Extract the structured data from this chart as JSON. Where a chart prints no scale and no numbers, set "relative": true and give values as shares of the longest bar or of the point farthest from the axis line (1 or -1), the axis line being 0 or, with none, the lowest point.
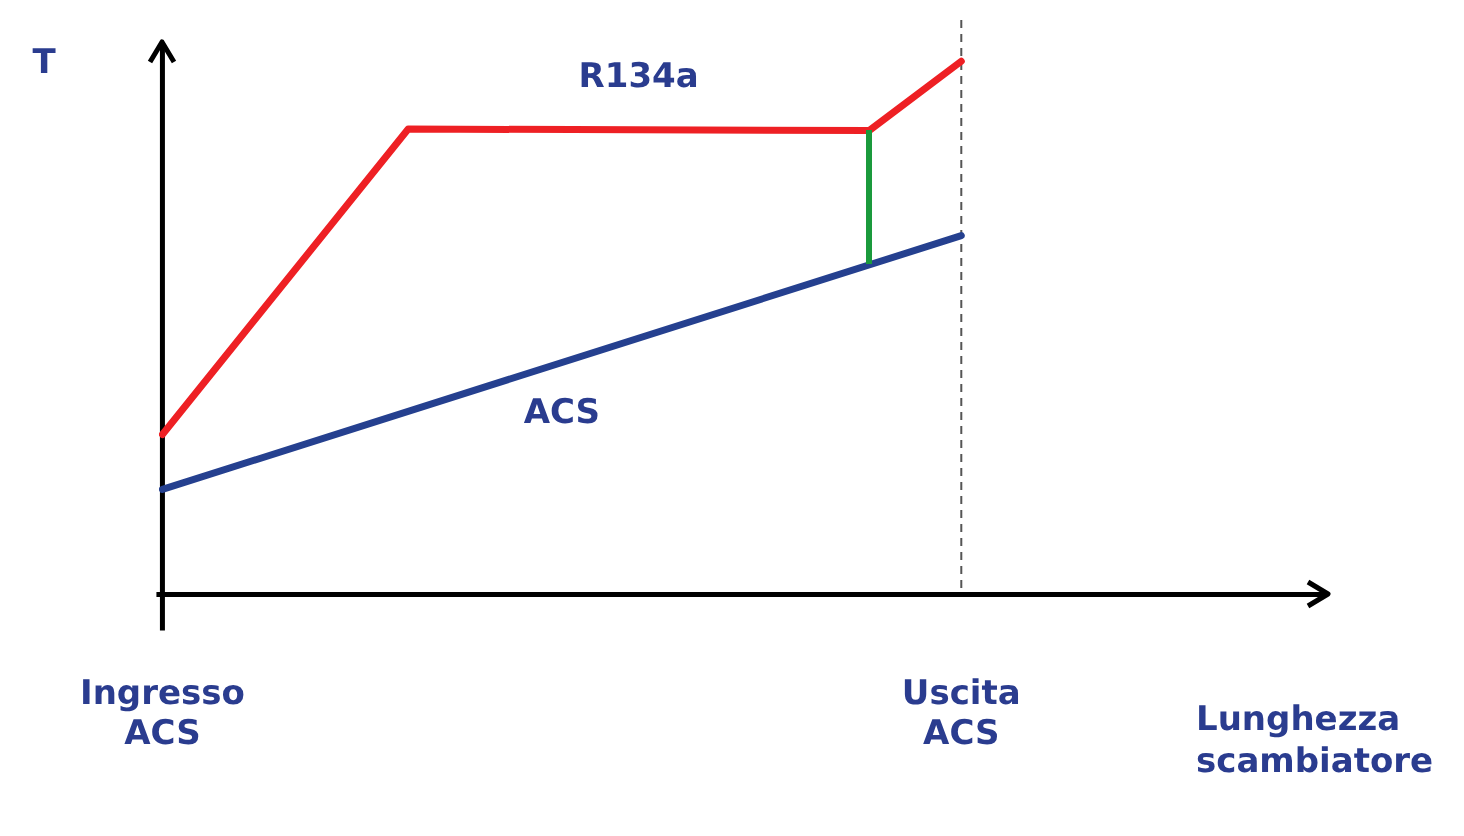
{
  "chart_data": {
    "type": "line",
    "relative": true,
    "xlabel": "Lunghezza scambiatore",
    "ylabel": "T",
    "categories": [
      "Ingresso ACS",
      null,
      null,
      null,
      null,
      null,
      null,
      null,
      null,
      null,
      null,
      null,
      null,
      null,
      null,
      null,
      null,
      null,
      null,
      null,
      null,
      null,
      null,
      null,
      null,
      null,
      "Uscita ACS",
      null,
      null,
      null,
      null,
      null,
      null,
      null,
      null,
      null,
      null,
      null,
      null
    ],
    "series": [
      {
        "name": "R134a",
        "color": "#ee2024",
        "values": [
          0.3,
          null,
          null,
          null,
          null,
          null,
          null,
          null,
          0.873,
          null,
          null,
          null,
          null,
          null,
          null,
          null,
          null,
          null,
          null,
          null,
          null,
          null,
          null,
          0.87,
          null,
          null,
          1,
          null,
          null,
          null,
          null,
          null,
          null,
          null,
          null,
          null,
          null,
          null,
          null
        ]
      },
      {
        "name": "ACS",
        "color": "#25408f",
        "values": [
          0.197,
          null,
          null,
          null,
          null,
          null,
          null,
          null,
          null,
          null,
          null,
          null,
          null,
          null,
          null,
          null,
          null,
          null,
          null,
          null,
          null,
          null,
          null,
          null,
          null,
          null,
          0.673,
          null,
          null,
          null,
          null,
          null,
          null,
          null,
          null,
          null,
          null,
          null,
          null
        ]
      }
    ],
    "ref_lines": [
      {
        "axis": "x",
        "value": "Uscita ACS",
        "color": "#555555",
        "line_style": "dashed"
      }
    ],
    "grid": false,
    "legend": false,
    "marker": "none",
    "line_style": "solid"
  }
}
